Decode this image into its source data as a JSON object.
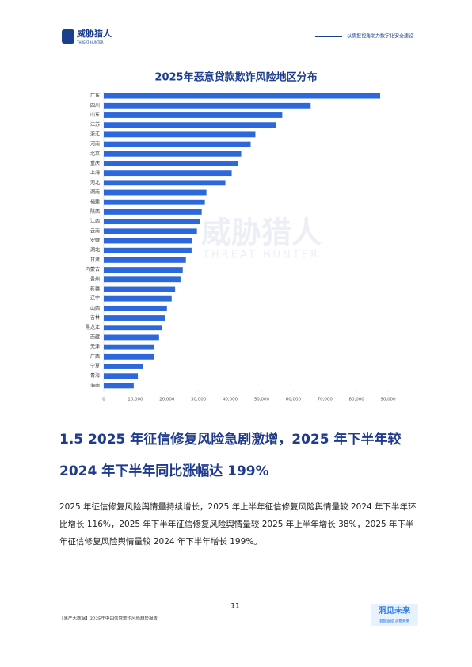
{
  "header": {
    "logo": "威胁猎人",
    "logo_sub": "THREAT HUNTER",
    "slogan": "以情报视角助力数字化安全建设"
  },
  "chart_data": {
    "type": "bar",
    "orientation": "horizontal",
    "title": "2025年恶意贷款欺诈风险地区分布",
    "color": "#2c67dc",
    "categories": [
      "广东",
      "四川",
      "山东",
      "江苏",
      "浙江",
      "河南",
      "北京",
      "重庆",
      "上海",
      "河北",
      "湖南",
      "福建",
      "陕西",
      "江西",
      "云南",
      "安徽",
      "湖北",
      "甘肃",
      "内蒙古",
      "贵州",
      "新疆",
      "辽宁",
      "山西",
      "吉林",
      "黑龙江",
      "西藏",
      "天津",
      "广西",
      "宁夏",
      "青海",
      "海南"
    ],
    "values": [
      87500,
      65500,
      56500,
      54500,
      48000,
      46500,
      43500,
      42500,
      40500,
      38500,
      32500,
      32000,
      31000,
      30500,
      29500,
      28000,
      27800,
      26000,
      25000,
      24300,
      22600,
      21500,
      20000,
      19300,
      18300,
      17500,
      16000,
      15800,
      12500,
      10800,
      9500
    ],
    "xlim": [
      0,
      90000
    ],
    "xticks": [
      0,
      {
        "value": 10000,
        "label": "10,000"
      },
      {
        "value": 20000,
        "label": "20,000"
      },
      {
        "value": 30000,
        "label": "30,000"
      },
      {
        "value": 40000,
        "label": "40,000"
      },
      {
        "value": 50000,
        "label": "50,000"
      },
      {
        "value": 60000,
        "label": "60,000"
      },
      {
        "value": 70000,
        "label": "70,000"
      },
      {
        "value": 80000,
        "label": "80,000"
      },
      {
        "value": 90000,
        "label": "90,000"
      }
    ],
    "watermark": "威胁猎人",
    "watermark_sub": "THREAT HUNTER"
  },
  "section": {
    "heading": "1.5 2025 年征信修复风险急剧激增，2025 年下半年较 2024 年下半年同比涨幅达 199%",
    "paragraph": "2025 年征信修复风险舆情量持续增长，2025 年上半年征信修复风险舆情量较 2024 年下半年环比增长 116%，2025 年下半年征信修复风险舆情量较 2025 年上半年增长 38%，2025 年下半年征信修复风险舆情量较 2024 年下半年增长 199%。"
  },
  "footer": {
    "page_number": "11",
    "source": "【黑产大数据】2025年中国信贷欺诈风险趋势报告",
    "badge": "洞见未来",
    "badge_sub": "数据驱动 洞察未来"
  }
}
